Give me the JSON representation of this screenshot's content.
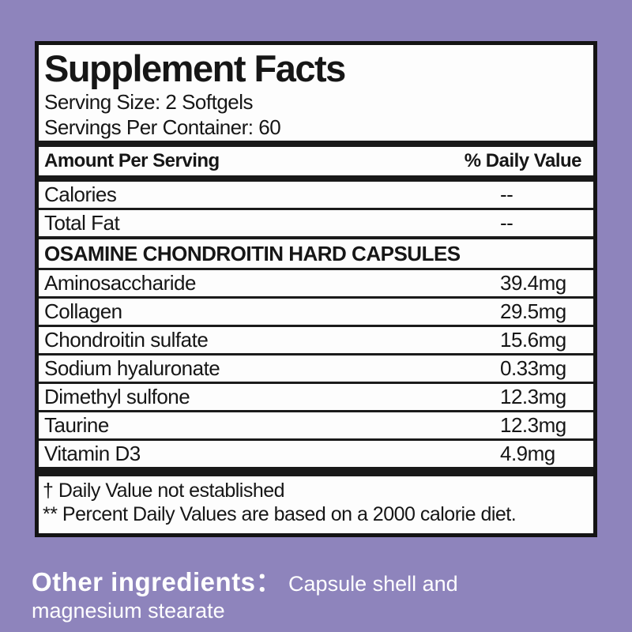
{
  "background_color": "#8e84bc",
  "label": {
    "title": "Supplement Facts",
    "serving_size": "Serving Size: 2 Softgels",
    "servings_per_container": "Servings Per Container: 60",
    "columns": {
      "amount": "Amount Per Serving",
      "daily_value": "% Daily Value"
    },
    "general_rows": [
      {
        "name": "Calories",
        "value": "--"
      },
      {
        "name": "Total Fat",
        "value": "--"
      }
    ],
    "section_header": "OSAMINE CHONDROITIN HARD CAPSULES",
    "ingredient_rows": [
      {
        "name": "Aminosaccharide",
        "value": "39.4mg"
      },
      {
        "name": "Collagen",
        "value": "29.5mg"
      },
      {
        "name": "Chondroitin sulfate",
        "value": "15.6mg"
      },
      {
        "name": "Sodium hyaluronate",
        "value": "0.33mg"
      },
      {
        "name": "Dimethyl sulfone",
        "value": "12.3mg"
      },
      {
        "name": "Taurine",
        "value": "12.3mg"
      },
      {
        "name": "Vitamin D3",
        "value": "4.9mg"
      }
    ],
    "footnotes": [
      "† Daily Value not established",
      "** Percent Daily Values are based on a 2000 calorie diet."
    ]
  },
  "other_ingredients": {
    "label": "Other ingredients：",
    "text": "Capsule shell and magnesium stearate"
  }
}
